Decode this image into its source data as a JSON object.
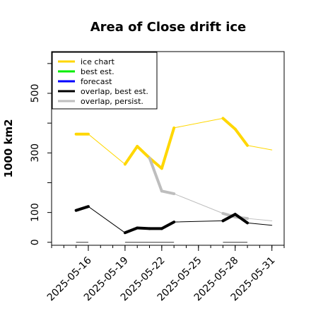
{
  "chart_data": {
    "type": "line",
    "title": "Area of Close drift ice",
    "ylabel": "1000 km2",
    "xlabel": "",
    "x_ticks": [
      "2025-05-16",
      "2025-05-19",
      "2025-05-22",
      "2025-05-25",
      "2025-05-28",
      "2025-05-31"
    ],
    "x_tick_colors": [
      "#000000",
      "#000000",
      "#228B22",
      "#000000",
      "#000000",
      "#000000"
    ],
    "y_ticks": [
      0,
      100,
      300,
      500
    ],
    "ylim": [
      -10,
      640
    ],
    "xlim": [
      "2025-05-13",
      "2025-06-01"
    ],
    "grid": false,
    "legend_position": "top-left",
    "legend": [
      {
        "label": "ice chart",
        "color": "#FFD700"
      },
      {
        "label": "best est.",
        "color": "#00EE00"
      },
      {
        "label": "forecast",
        "color": "#0000FF"
      },
      {
        "label": "overlap, best est.",
        "color": "#000000"
      },
      {
        "label": "overlap, persist.",
        "color": "#BEBEBE"
      }
    ],
    "series": [
      {
        "name": "ice chart",
        "color": "#FFD700",
        "points": [
          {
            "x": "2025-05-15",
            "y": 363,
            "thick": true
          },
          {
            "x": "2025-05-16",
            "y": 363,
            "thick": false
          },
          {
            "x": "2025-05-19",
            "y": 262,
            "thick": true
          },
          {
            "x": "2025-05-20",
            "y": 322,
            "thick": true
          },
          {
            "x": "2025-05-21",
            "y": 283,
            "thick": true
          },
          {
            "x": "2025-05-22",
            "y": 248,
            "thick": true
          },
          {
            "x": "2025-05-23",
            "y": 384,
            "thick": false
          },
          {
            "x": "2025-05-27",
            "y": 416,
            "thick": true
          },
          {
            "x": "2025-05-28",
            "y": 380,
            "thick": true
          },
          {
            "x": "2025-05-29",
            "y": 325,
            "thick": false
          },
          {
            "x": "2025-05-31",
            "y": 310,
            "thick": false
          }
        ]
      },
      {
        "name": "overlap, persist.",
        "color": "#BEBEBE",
        "points": [
          {
            "x": "2025-05-21",
            "y": 283,
            "thick": true
          },
          {
            "x": "2025-05-22",
            "y": 172,
            "thick": true
          },
          {
            "x": "2025-05-23",
            "y": 163,
            "thick": false
          },
          {
            "x": "2025-05-27",
            "y": 97,
            "thick": true
          },
          {
            "x": "2025-05-28",
            "y": 85,
            "thick": true
          },
          {
            "x": "2025-05-29",
            "y": 80,
            "thick": false
          },
          {
            "x": "2025-05-31",
            "y": 72,
            "thick": false
          }
        ]
      },
      {
        "name": "overlap, best est.",
        "color": "#000000",
        "points": [
          {
            "x": "2025-05-15",
            "y": 107,
            "thick": true
          },
          {
            "x": "2025-05-16",
            "y": 120,
            "thick": false
          },
          {
            "x": "2025-05-19",
            "y": 32,
            "thick": true
          },
          {
            "x": "2025-05-20",
            "y": 48,
            "thick": true
          },
          {
            "x": "2025-05-21",
            "y": 46,
            "thick": true
          },
          {
            "x": "2025-05-22",
            "y": 46,
            "thick": true
          },
          {
            "x": "2025-05-23",
            "y": 68,
            "thick": false
          },
          {
            "x": "2025-05-27",
            "y": 72,
            "thick": true
          },
          {
            "x": "2025-05-28",
            "y": 94,
            "thick": true
          },
          {
            "x": "2025-05-29",
            "y": 65,
            "thick": false
          },
          {
            "x": "2025-05-31",
            "y": 57,
            "thick": false
          }
        ]
      }
    ],
    "baseline_segments": [
      {
        "x1": "2025-05-15",
        "x2": "2025-05-16",
        "y": 0
      },
      {
        "x1": "2025-05-19",
        "x2": "2025-05-23",
        "y": 0
      },
      {
        "x1": "2025-05-27",
        "x2": "2025-05-29",
        "y": 0
      }
    ]
  }
}
